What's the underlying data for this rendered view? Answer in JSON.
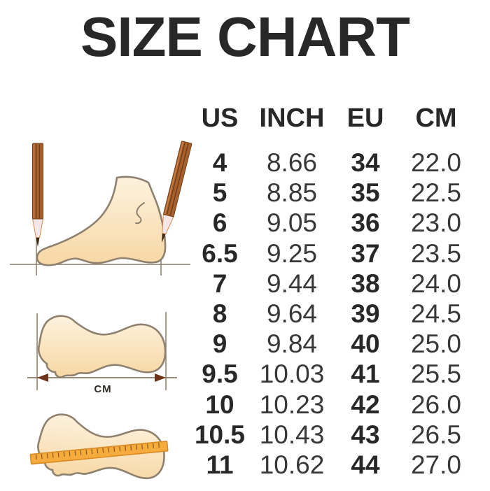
{
  "title": "SIZE CHART",
  "chart_data": {
    "type": "table",
    "title": "SIZE CHART",
    "columns": [
      "US",
      "INCH",
      "EU",
      "CM"
    ],
    "rows": [
      [
        "4",
        "8.66",
        "34",
        "22.0"
      ],
      [
        "5",
        "8.85",
        "35",
        "22.5"
      ],
      [
        "6",
        "9.05",
        "36",
        "23.0"
      ],
      [
        "6.5",
        "9.25",
        "37",
        "23.5"
      ],
      [
        "7",
        "9.44",
        "38",
        "24.0"
      ],
      [
        "8",
        "9.64",
        "39",
        "24.5"
      ],
      [
        "9",
        "9.84",
        "40",
        "25.0"
      ],
      [
        "9.5",
        "10.03",
        "41",
        "25.5"
      ],
      [
        "10",
        "10.23",
        "42",
        "26.0"
      ],
      [
        "10.5",
        "10.43",
        "43",
        "26.5"
      ],
      [
        "11",
        "10.62",
        "44",
        "27.0"
      ]
    ]
  },
  "illustrations": {
    "foot_side_view": "foot side profile measured with two pencils on a baseline",
    "footprint_length": "footprint outline with length measuring arrow",
    "footprint_ruler": "footprint outline with ruler laid across",
    "arrow_label": "CM"
  },
  "icons": {
    "pencil": "pencil-icon",
    "ruler": "ruler-icon",
    "measure_arrow": "measure-arrow-icon"
  },
  "colors": {
    "title_color": "#282828",
    "value_color": "#383838",
    "foot_fill_light": "#fdf2de",
    "foot_fill_dark": "#f7d7a4",
    "foot_outline": "#8f8170",
    "measure_line": "#8a7a66",
    "arrow_head": "#6e3318",
    "label_color": "#2d2a26",
    "pencil_body": "#a8612c",
    "pencil_stripe": "#6f3d18",
    "pencil_highlight": "#cf8b4e",
    "pencil_wood": "#f5e6e8",
    "pencil_lead": "#3f2414",
    "ruler_fill": "#f6ab3e",
    "ruler_border": "#d98a22",
    "ruler_tick": "#8a5718"
  }
}
